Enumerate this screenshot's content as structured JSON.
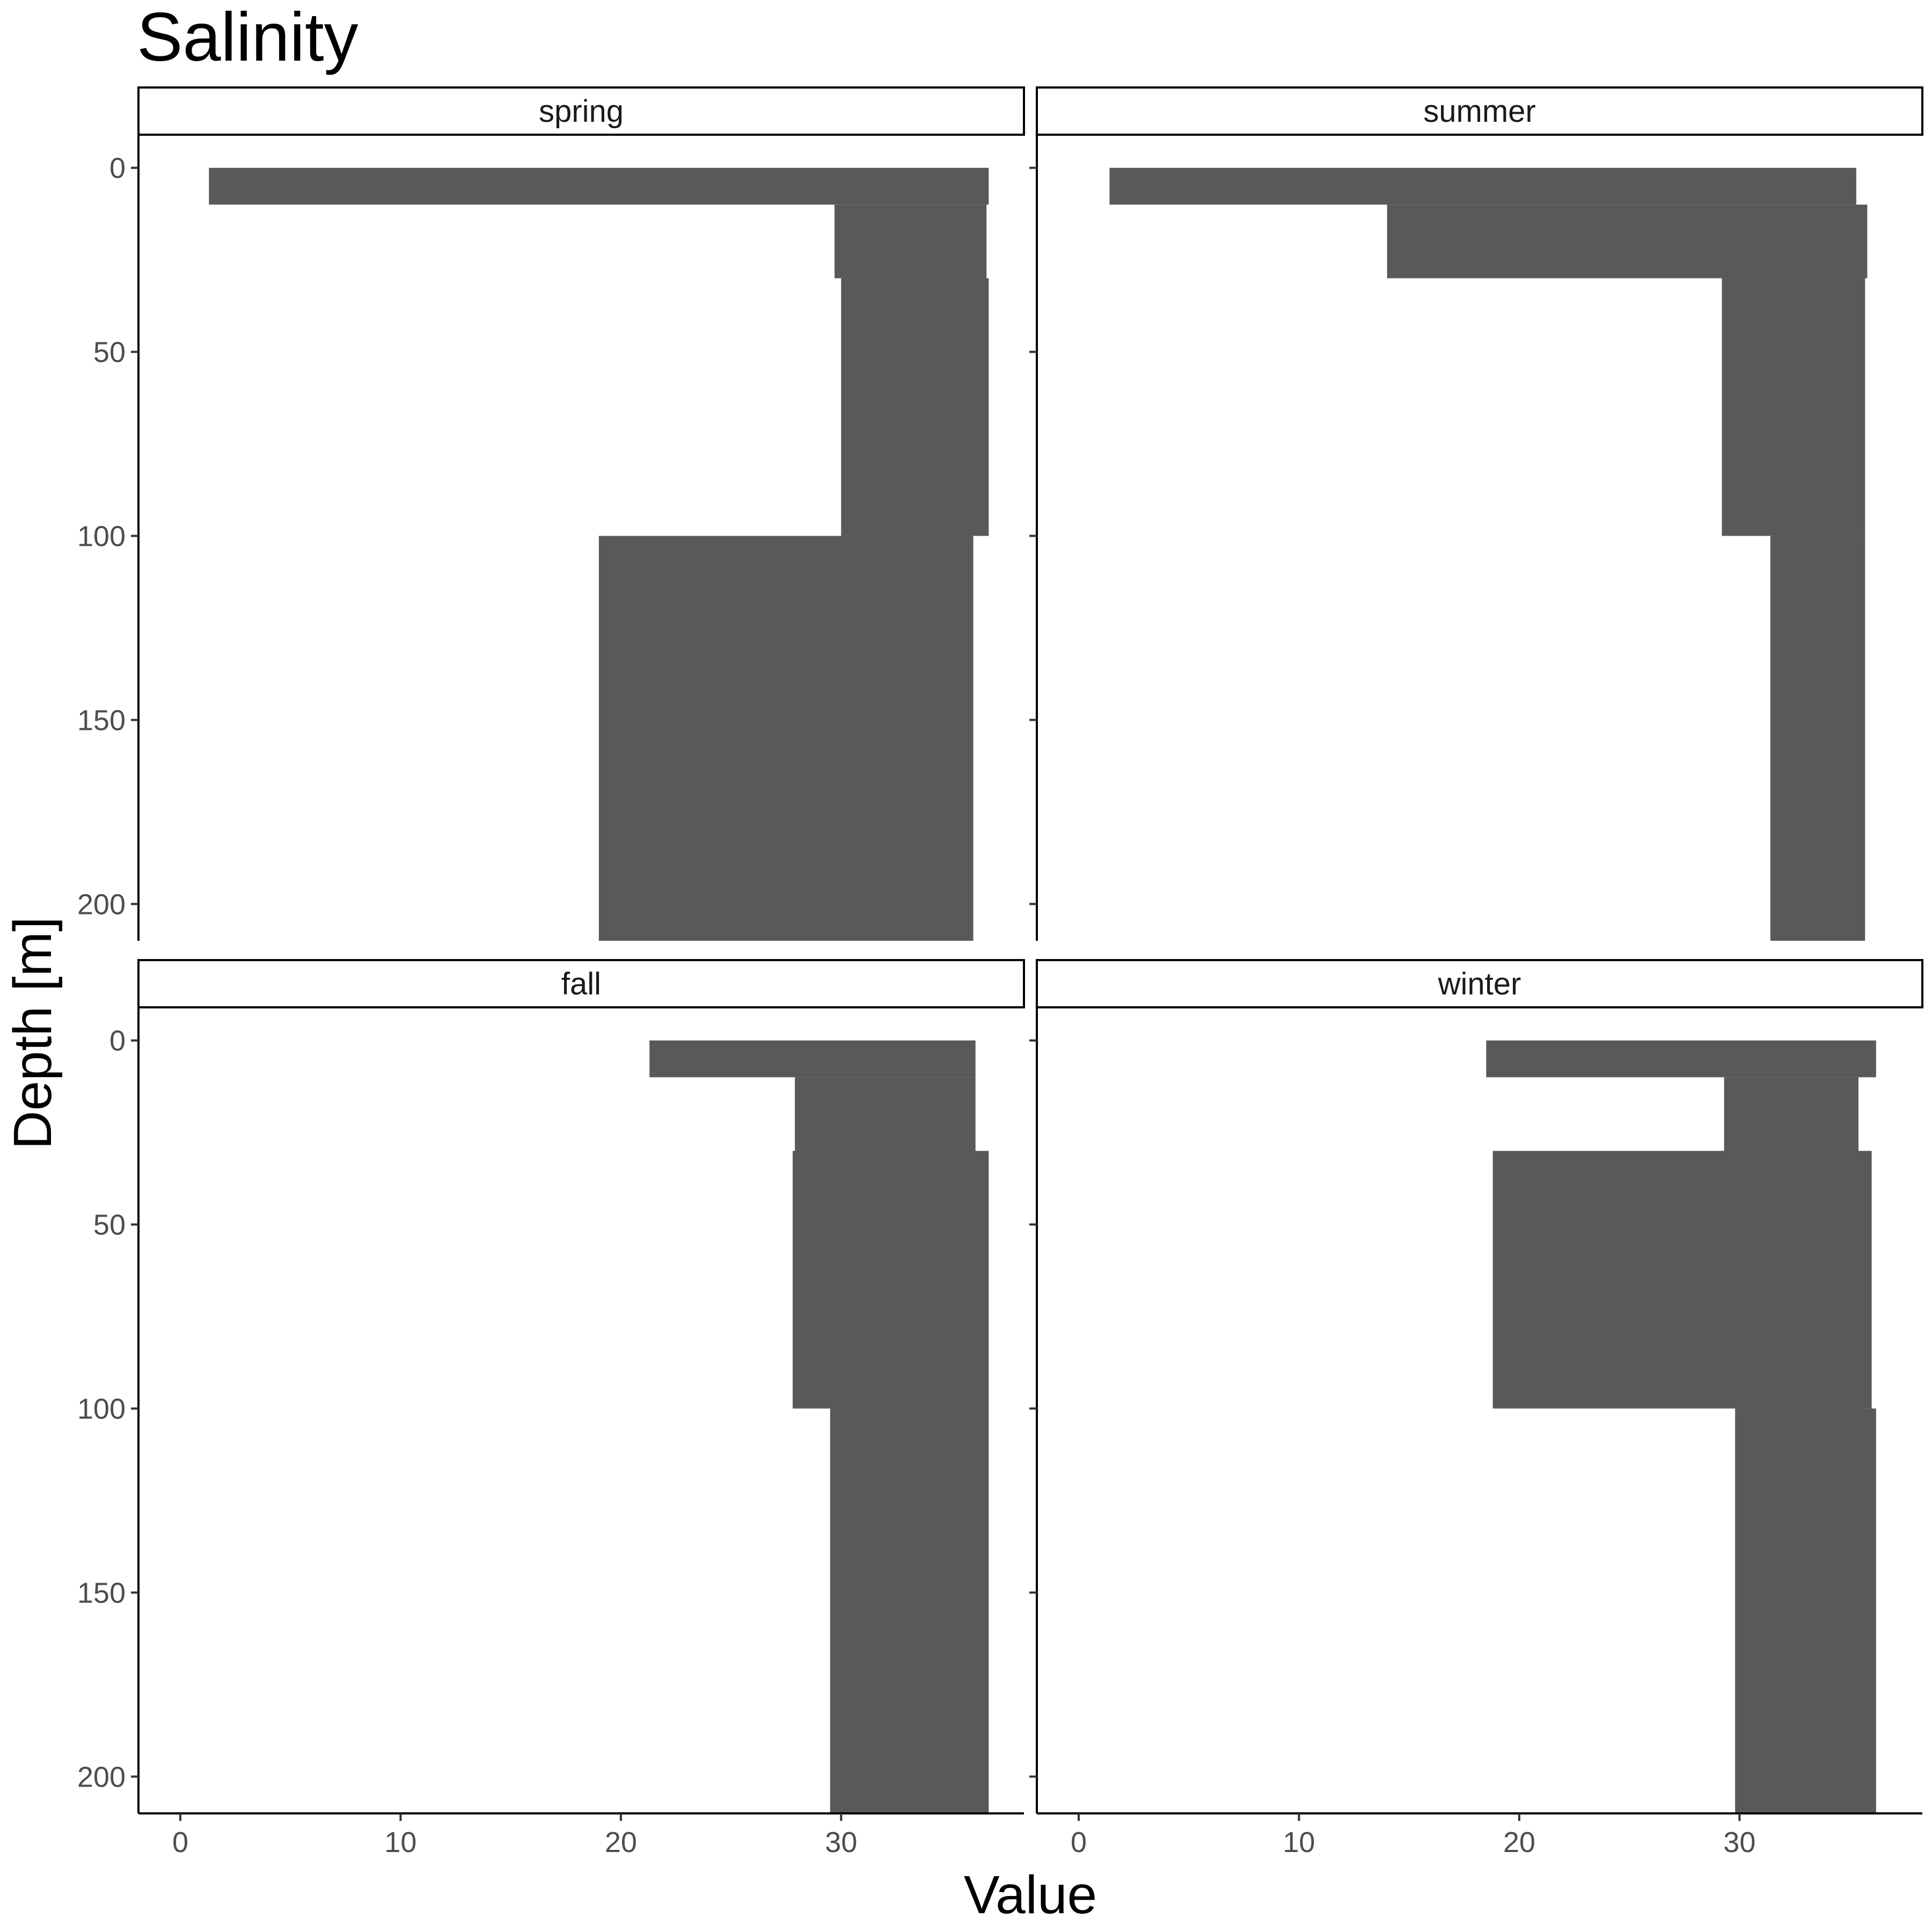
{
  "chart_data": {
    "type": "bar",
    "orientation": "horizontal",
    "title": "Salinity",
    "xlabel": "Value",
    "ylabel": "Depth [m]",
    "xlim": [
      -1.9,
      38.3
    ],
    "ylim": [
      210,
      -9
    ],
    "y_reversed": true,
    "x_ticks": [
      0,
      10,
      20,
      30
    ],
    "y_ticks": [
      0,
      50,
      100,
      150,
      200
    ],
    "grid": false,
    "legend": "none",
    "bar_color": "#595959",
    "panels": [
      {
        "label": "spring",
        "layers": [
          {
            "depth_top": 0,
            "depth_bottom": 10,
            "min": 1.3,
            "max": 36.7
          },
          {
            "depth_top": 10,
            "depth_bottom": 30,
            "min": 29.7,
            "max": 36.6
          },
          {
            "depth_top": 30,
            "depth_bottom": 100,
            "min": 30.0,
            "max": 36.7
          },
          {
            "depth_top": 100,
            "depth_bottom": 210,
            "min": 19.0,
            "max": 36.0
          }
        ]
      },
      {
        "label": "summer",
        "layers": [
          {
            "depth_top": 0,
            "depth_bottom": 10,
            "min": 1.4,
            "max": 35.3
          },
          {
            "depth_top": 10,
            "depth_bottom": 30,
            "min": 14.0,
            "max": 35.8
          },
          {
            "depth_top": 30,
            "depth_bottom": 100,
            "min": 29.2,
            "max": 35.7
          },
          {
            "depth_top": 100,
            "depth_bottom": 210,
            "min": 31.4,
            "max": 35.7
          }
        ]
      },
      {
        "label": "fall",
        "layers": [
          {
            "depth_top": 0,
            "depth_bottom": 10,
            "min": 21.3,
            "max": 36.1
          },
          {
            "depth_top": 10,
            "depth_bottom": 30,
            "min": 27.9,
            "max": 36.1
          },
          {
            "depth_top": 30,
            "depth_bottom": 100,
            "min": 27.8,
            "max": 36.7
          },
          {
            "depth_top": 100,
            "depth_bottom": 210,
            "min": 29.5,
            "max": 36.7
          }
        ]
      },
      {
        "label": "winter",
        "layers": [
          {
            "depth_top": 0,
            "depth_bottom": 10,
            "min": 18.5,
            "max": 36.2
          },
          {
            "depth_top": 10,
            "depth_bottom": 30,
            "min": 29.3,
            "max": 35.4
          },
          {
            "depth_top": 30,
            "depth_bottom": 100,
            "min": 18.8,
            "max": 36.0
          },
          {
            "depth_top": 100,
            "depth_bottom": 210,
            "min": 29.8,
            "max": 36.2
          }
        ]
      }
    ]
  }
}
